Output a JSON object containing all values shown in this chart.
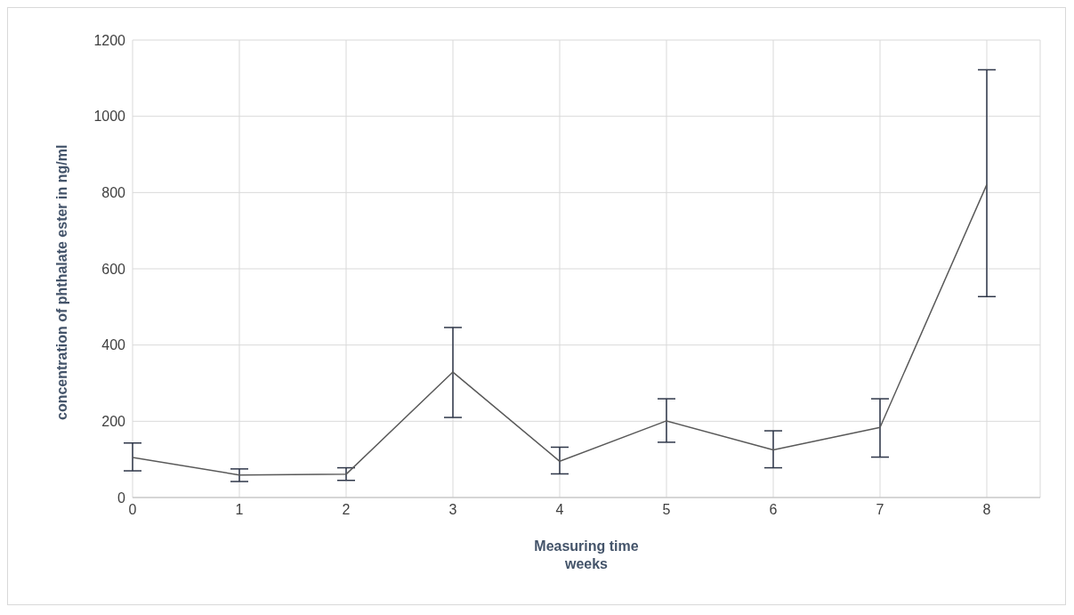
{
  "chart_data": {
    "type": "line",
    "xlabel": "Measuring time\nweeks",
    "ylabel": "concentration of  phthalate ester in ng/ml",
    "x": [
      0,
      1,
      2,
      3,
      4,
      5,
      6,
      7,
      8
    ],
    "series": [
      {
        "color": "#595959",
        "values": [
          105,
          59,
          61,
          329,
          95,
          201,
          125,
          184,
          821
        ],
        "errors": [
          [
            70,
            143
          ],
          [
            42,
            75
          ],
          [
            45,
            78
          ],
          [
            210,
            446
          ],
          [
            62,
            132
          ],
          [
            145,
            259
          ],
          [
            78,
            175
          ],
          [
            106,
            259
          ],
          [
            527,
            1122
          ]
        ]
      }
    ],
    "xlim": [
      0,
      8.5
    ],
    "xticks": [
      0,
      1,
      2,
      3,
      4,
      5,
      6,
      7,
      8
    ],
    "ylim": [
      0,
      1200
    ],
    "yticks": [
      0,
      200,
      400,
      600,
      800,
      1000,
      1200
    ],
    "grid": true,
    "legend": false,
    "marker": "none",
    "line_style": "solid"
  }
}
